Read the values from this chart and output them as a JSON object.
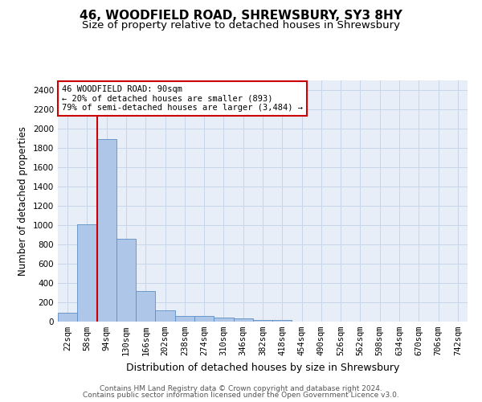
{
  "title1": "46, WOODFIELD ROAD, SHREWSBURY, SY3 8HY",
  "title2": "Size of property relative to detached houses in Shrewsbury",
  "xlabel": "Distribution of detached houses by size in Shrewsbury",
  "ylabel": "Number of detached properties",
  "footer1": "Contains HM Land Registry data © Crown copyright and database right 2024.",
  "footer2": "Contains public sector information licensed under the Open Government Licence v3.0.",
  "bar_labels": [
    "22sqm",
    "58sqm",
    "94sqm",
    "130sqm",
    "166sqm",
    "202sqm",
    "238sqm",
    "274sqm",
    "310sqm",
    "346sqm",
    "382sqm",
    "418sqm",
    "454sqm",
    "490sqm",
    "526sqm",
    "562sqm",
    "598sqm",
    "634sqm",
    "670sqm",
    "706sqm",
    "742sqm"
  ],
  "bar_values": [
    90,
    1010,
    1890,
    860,
    315,
    120,
    60,
    55,
    45,
    30,
    20,
    15,
    0,
    0,
    0,
    0,
    0,
    0,
    0,
    0,
    0
  ],
  "bar_color": "#aec6e8",
  "bar_edge_color": "#5b8ec4",
  "bar_width": 1.0,
  "vline_x_index": 1.5,
  "vline_color": "#cc0000",
  "annotation_line1": "46 WOODFIELD ROAD: 90sqm",
  "annotation_line2": "← 20% of detached houses are smaller (893)",
  "annotation_line3": "79% of semi-detached houses are larger (3,484) →",
  "annotation_box_color": "#ffffff",
  "annotation_box_edge_color": "#cc0000",
  "ylim": [
    0,
    2500
  ],
  "yticks": [
    0,
    200,
    400,
    600,
    800,
    1000,
    1200,
    1400,
    1600,
    1800,
    2000,
    2200,
    2400
  ],
  "grid_color": "#c8d4e8",
  "bg_color": "#e8eef8",
  "title1_fontsize": 11,
  "title2_fontsize": 9.5,
  "xlabel_fontsize": 9,
  "ylabel_fontsize": 8.5,
  "tick_fontsize": 7.5,
  "footer_fontsize": 6.5,
  "annotation_fontsize": 7.5
}
